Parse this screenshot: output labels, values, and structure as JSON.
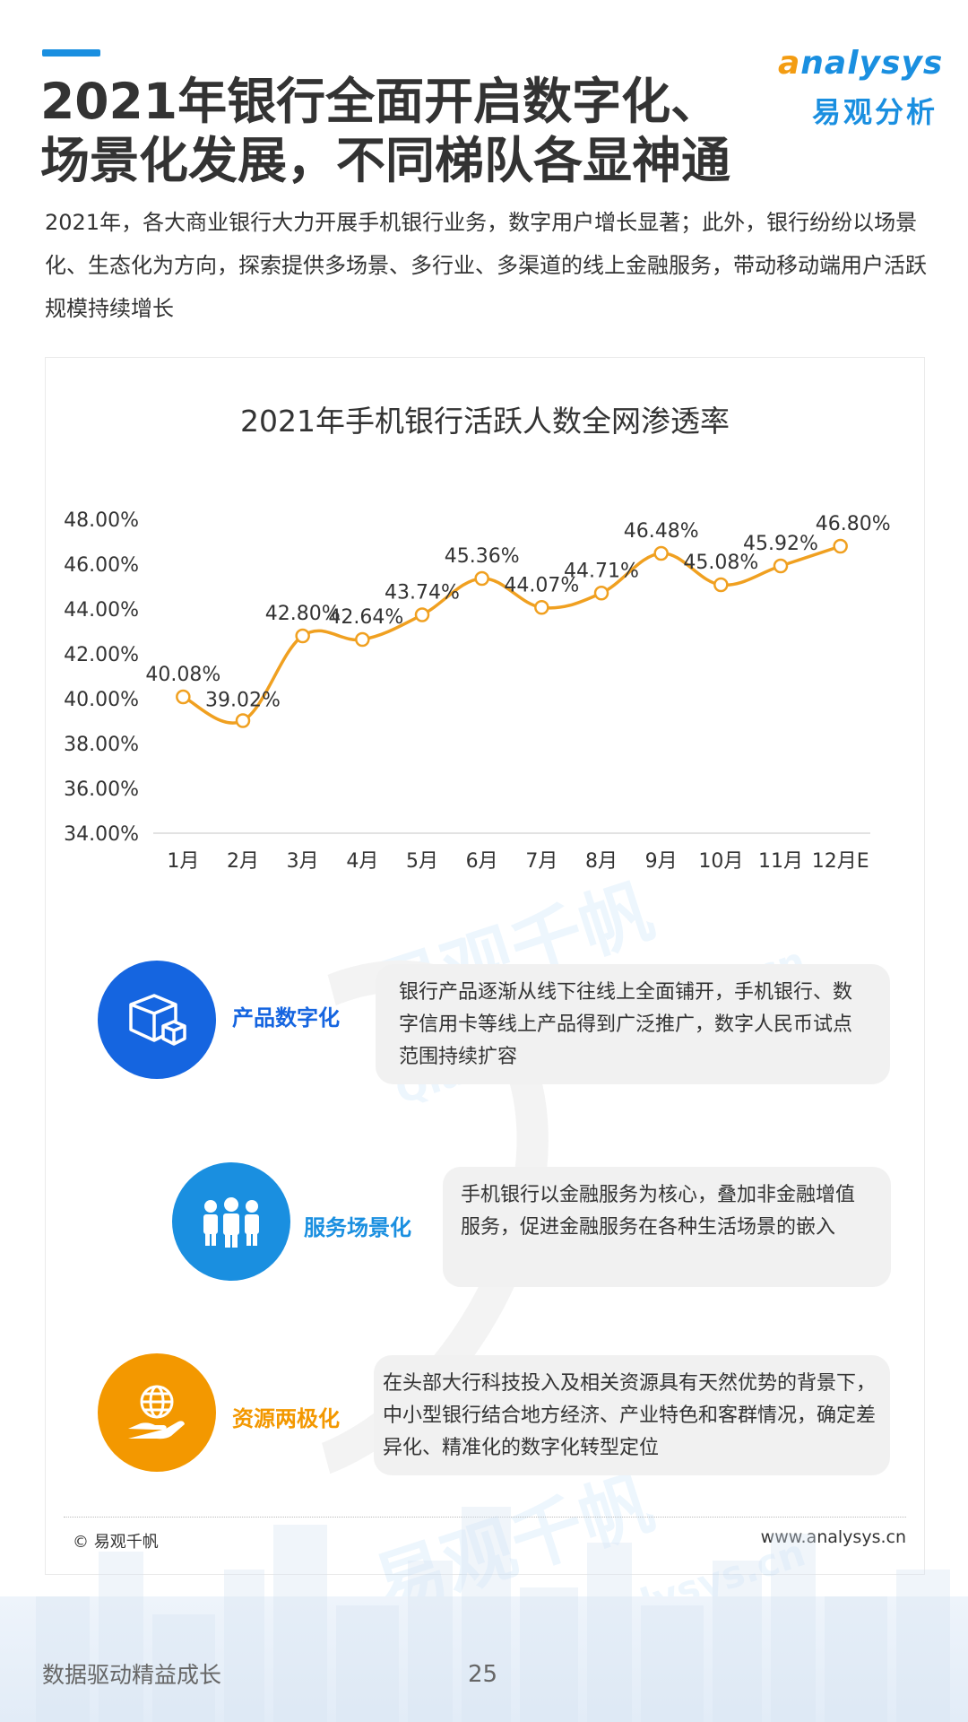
{
  "header": {
    "title_line1": "2021年银行全面开启数字化、",
    "title_line2": "场景化发展，不同梯队各显神通",
    "logo_en_a": "a",
    "logo_en_rest": "nalysys",
    "logo_cn": "易观分析"
  },
  "subtitle": "2021年，各大商业银行大力开展手机银行业务，数字用户增长显著；此外，银行纷纷以场景化、生态化为方向，探索提供多场景、多行业、多渠道的线上金融服务，带动移动端用户活跃规模持续增长",
  "watermark": {
    "cn": "易观千帆",
    "en": "Qianfan.analysys.cn"
  },
  "chart_data": {
    "type": "line",
    "title": "2021年手机银行活跃人数全网渗透率",
    "categories": [
      "1月",
      "2月",
      "3月",
      "4月",
      "5月",
      "6月",
      "7月",
      "8月",
      "9月",
      "10月",
      "11月",
      "12月E"
    ],
    "values": [
      40.08,
      39.02,
      42.8,
      42.64,
      43.74,
      45.36,
      44.07,
      44.71,
      46.48,
      45.08,
      45.92,
      46.8
    ],
    "value_labels": [
      "40.08%",
      "39.02%",
      "42.80%",
      "42.64%",
      "43.74%",
      "45.36%",
      "44.07%",
      "44.71%",
      "46.48%",
      "45.08%",
      "45.92%",
      "46.80%"
    ],
    "y_ticks": [
      34,
      36,
      38,
      40,
      42,
      44,
      46,
      48
    ],
    "y_tick_labels": [
      "34.00%",
      "36.00%",
      "38.00%",
      "40.00%",
      "42.00%",
      "44.00%",
      "46.00%",
      "48.00%"
    ],
    "ylim": [
      34,
      48
    ],
    "line_color": "#f0a020",
    "grid": false
  },
  "features": [
    {
      "label": "产品数字化",
      "desc": "银行产品逐渐从线下往线上全面铺开，手机银行、数字信用卡等线上产品得到广泛推广，数字人民币试点范围持续扩容",
      "color": "#1565e0",
      "icon": "box-icon"
    },
    {
      "label": "服务场景化",
      "desc": "手机银行以金融服务为核心，叠加非金融增值服务，促进金融服务在各种生活场景的嵌入",
      "color": "#1a8fe0",
      "icon": "people-icon"
    },
    {
      "label": "资源两极化",
      "desc": "在头部大行科技投入及相关资源具有天然优势的背景下，中小型银行结合地方经济、产业特色和客群情况，确定差异化、精准化的数字化转型定位",
      "color": "#f39800",
      "icon": "globe-hand-icon"
    }
  ],
  "card_footer": {
    "copyright": "© 易观千帆",
    "website": "www.analysys.cn"
  },
  "page_footer": {
    "slogan": "数据驱动精益成长",
    "page_number": "25"
  }
}
